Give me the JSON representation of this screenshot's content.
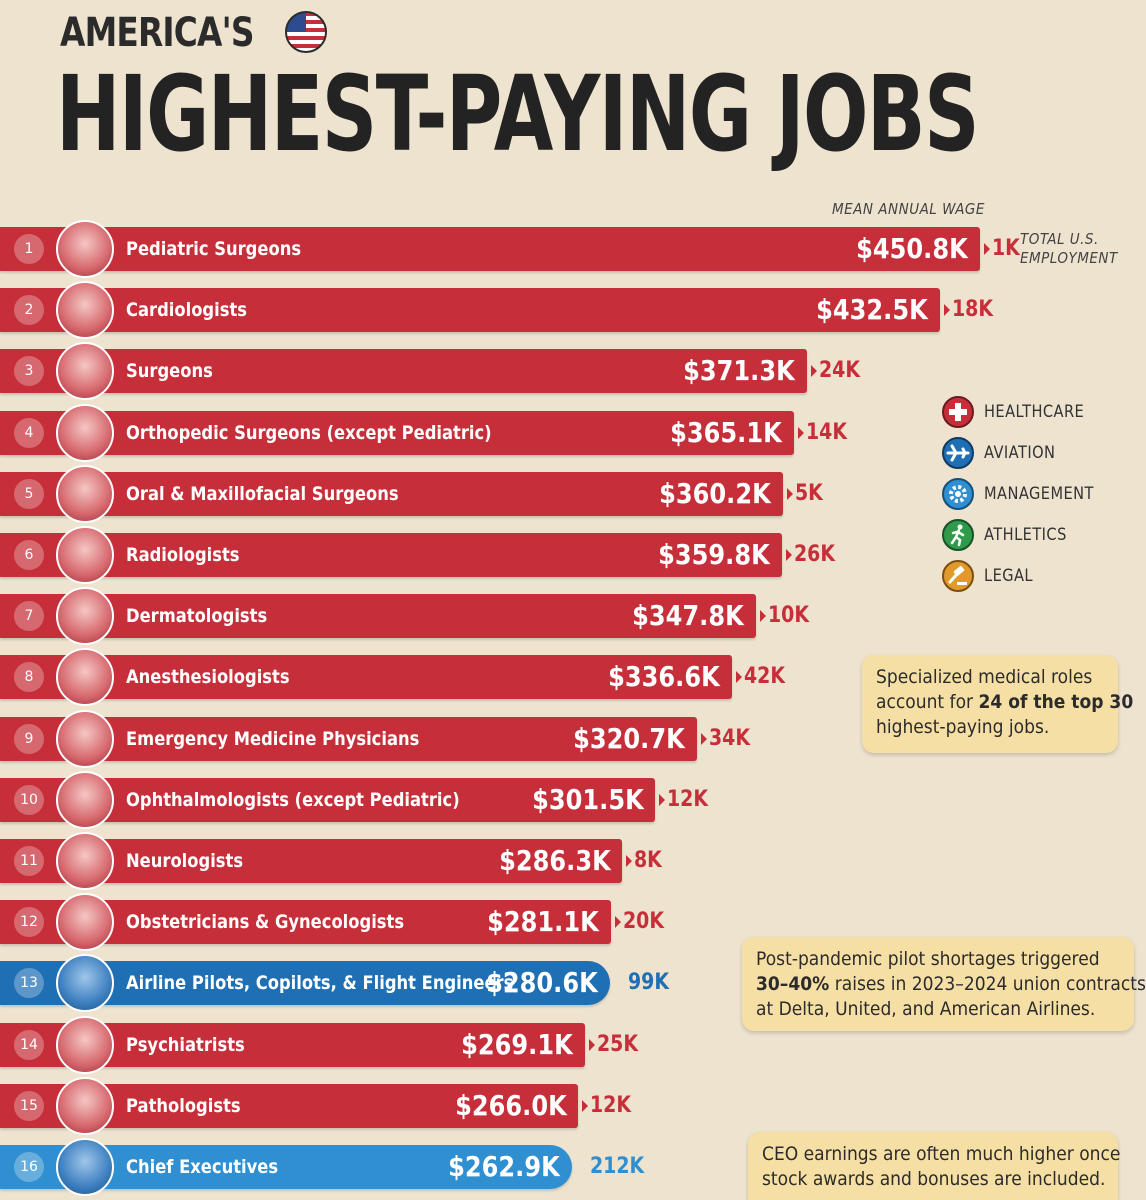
{
  "header": {
    "line1": "AMERICA'S",
    "line2": "HIGHEST-PAYING JOBS"
  },
  "columns": {
    "wage": "MEAN ANNUAL WAGE",
    "employment_line1": "TOTAL U.S.",
    "employment_line2": "EMPLOYMENT"
  },
  "legend": [
    {
      "label": "HEALTHCARE",
      "icon": "cross-icon",
      "color": "#c62f3a"
    },
    {
      "label": "AVIATION",
      "icon": "plane-icon",
      "color": "#1f6fb4"
    },
    {
      "label": "MANAGEMENT",
      "icon": "gear-icon",
      "color": "#2f8fd0"
    },
    {
      "label": "ATHLETICS",
      "icon": "runner-icon",
      "color": "#2f9a4a"
    },
    {
      "label": "LEGAL",
      "icon": "gavel-icon",
      "color": "#e09a2c"
    }
  ],
  "notes": {
    "medical": {
      "pre": "Specialized medical roles",
      "mid_pre": "account for ",
      "bold": "24 of the top 30",
      "end": "highest-paying jobs."
    },
    "pilot": {
      "l1": "Post-pandemic pilot shortages triggered",
      "bold": "30–40%",
      "l2_rest": " raises in 2023–2024 union contracts",
      "l3": "at Delta, United, and American Airlines."
    },
    "ceo": {
      "l1": "CEO earnings are often much higher once",
      "l2": "stock awards and bonuses are included."
    }
  },
  "chart_data": {
    "type": "bar",
    "orientation": "horizontal",
    "title": "AMERICA'S HIGHEST-PAYING JOBS",
    "value_label": "MEAN ANNUAL WAGE",
    "secondary_label": "TOTAL U.S. EMPLOYMENT",
    "colors": {
      "healthcare": "#c62f3a",
      "aviation": "#1f6fb4",
      "management": "#2f8fd0"
    },
    "rows": [
      {
        "rank": "1",
        "job": "Pediatric Surgeons",
        "wage": 450.8,
        "wage_label": "$450.8K",
        "employment_label": "1K",
        "category": "healthcare"
      },
      {
        "rank": "2",
        "job": "Cardiologists",
        "wage": 432.5,
        "wage_label": "$432.5K",
        "employment_label": "18K",
        "category": "healthcare"
      },
      {
        "rank": "3",
        "job": "Surgeons",
        "wage": 371.3,
        "wage_label": "$371.3K",
        "employment_label": "24K",
        "category": "healthcare"
      },
      {
        "rank": "4",
        "job": "Orthopedic Surgeons (except Pediatric)",
        "wage": 365.1,
        "wage_label": "$365.1K",
        "employment_label": "14K",
        "category": "healthcare"
      },
      {
        "rank": "5",
        "job": "Oral & Maxillofacial Surgeons",
        "wage": 360.2,
        "wage_label": "$360.2K",
        "employment_label": "5K",
        "category": "healthcare"
      },
      {
        "rank": "6",
        "job": "Radiologists",
        "wage": 359.8,
        "wage_label": "$359.8K",
        "employment_label": "26K",
        "category": "healthcare"
      },
      {
        "rank": "7",
        "job": "Dermatologists",
        "wage": 347.8,
        "wage_label": "$347.8K",
        "employment_label": "10K",
        "category": "healthcare"
      },
      {
        "rank": "8",
        "job": "Anesthesiologists",
        "wage": 336.6,
        "wage_label": "$336.6K",
        "employment_label": "42K",
        "category": "healthcare"
      },
      {
        "rank": "9",
        "job": "Emergency Medicine Physicians",
        "wage": 320.7,
        "wage_label": "$320.7K",
        "employment_label": "34K",
        "category": "healthcare"
      },
      {
        "rank": "10",
        "job": "Ophthalmologists (except Pediatric)",
        "wage": 301.5,
        "wage_label": "$301.5K",
        "employment_label": "12K",
        "category": "healthcare"
      },
      {
        "rank": "11",
        "job": "Neurologists",
        "wage": 286.3,
        "wage_label": "$286.3K",
        "employment_label": "8K",
        "category": "healthcare"
      },
      {
        "rank": "12",
        "job": "Obstetricians & Gynecologists",
        "wage": 281.1,
        "wage_label": "$281.1K",
        "employment_label": "20K",
        "category": "healthcare"
      },
      {
        "rank": "13",
        "job": "Airline Pilots, Copilots, & Flight Engineers",
        "wage": 280.6,
        "wage_label": "$280.6K",
        "employment_label": "99K",
        "category": "aviation"
      },
      {
        "rank": "14",
        "job": "Psychiatrists",
        "wage": 269.1,
        "wage_label": "$269.1K",
        "employment_label": "25K",
        "category": "healthcare"
      },
      {
        "rank": "15",
        "job": "Pathologists",
        "wage": 266.0,
        "wage_label": "$266.0K",
        "employment_label": "12K",
        "category": "healthcare"
      },
      {
        "rank": "16",
        "job": "Chief Executives",
        "wage": 262.9,
        "wage_label": "$262.9K",
        "employment_label": "212K",
        "category": "management"
      }
    ]
  }
}
